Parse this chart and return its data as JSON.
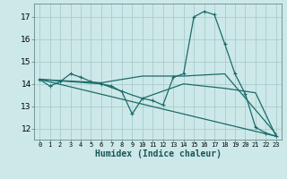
{
  "xlabel": "Humidex (Indice chaleur)",
  "bg_color": "#cde8e8",
  "grid_color": "#aacccc",
  "line_color": "#1a6b6b",
  "xlim": [
    -0.5,
    23.5
  ],
  "ylim": [
    11.5,
    17.6
  ],
  "xticks": [
    0,
    1,
    2,
    3,
    4,
    5,
    6,
    7,
    8,
    9,
    10,
    11,
    12,
    13,
    14,
    15,
    16,
    17,
    18,
    19,
    20,
    21,
    22,
    23
  ],
  "yticks": [
    12,
    13,
    14,
    15,
    16,
    17
  ],
  "series": [
    {
      "x": [
        0,
        1,
        2,
        3,
        4,
        5,
        6,
        7,
        8,
        9,
        10,
        11,
        12,
        13,
        14,
        15,
        16,
        17,
        18,
        19,
        20,
        21,
        22,
        23
      ],
      "y": [
        14.2,
        13.9,
        14.1,
        14.45,
        14.3,
        14.1,
        14.0,
        13.9,
        13.65,
        12.65,
        13.35,
        13.25,
        13.05,
        14.3,
        14.45,
        17.0,
        17.25,
        17.1,
        15.8,
        14.45,
        13.55,
        12.05,
        11.8,
        11.65
      ],
      "has_markers": true
    },
    {
      "x": [
        0,
        6,
        10,
        14,
        18,
        23
      ],
      "y": [
        14.2,
        14.05,
        14.35,
        14.35,
        14.45,
        11.75
      ],
      "has_markers": false
    },
    {
      "x": [
        0,
        6,
        9,
        10,
        14,
        18,
        21,
        23
      ],
      "y": [
        14.2,
        14.0,
        13.5,
        13.35,
        14.0,
        13.8,
        13.6,
        11.65
      ],
      "has_markers": false
    },
    {
      "x": [
        0,
        23
      ],
      "y": [
        14.2,
        11.65
      ],
      "has_markers": false
    }
  ]
}
